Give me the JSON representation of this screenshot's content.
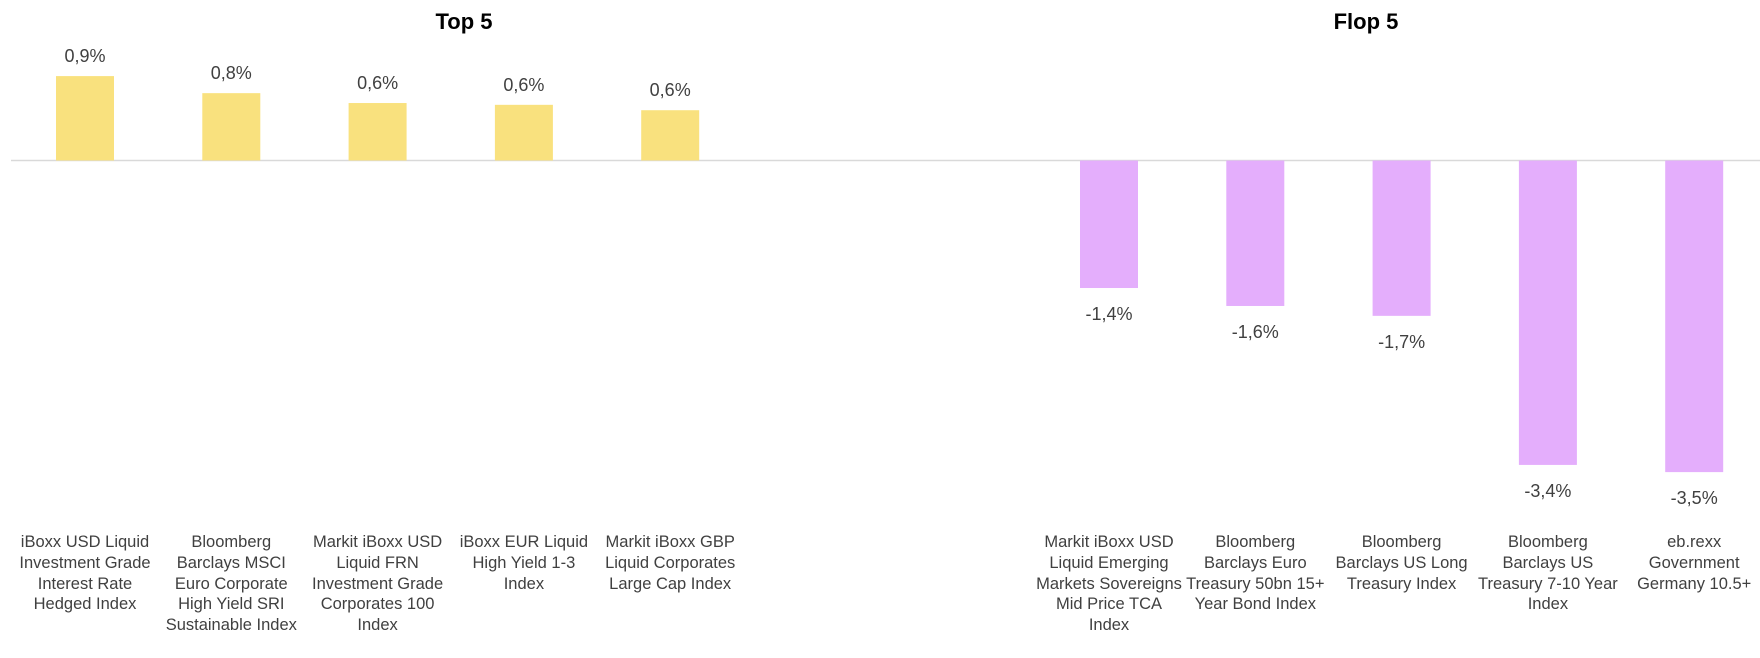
{
  "chart_data": [
    {
      "type": "bar",
      "title": "Top 5",
      "color": "#f9e17e",
      "categories": [
        "iBoxx USD Liquid Investment Grade Interest Rate Hedged Index",
        "Bloomberg Barclays MSCI Euro Corporate High Yield SRI Sustainable Index",
        "Markit iBoxx USD Liquid FRN Investment Grade Corporates 100 Index",
        "iBoxx EUR Liquid High Yield 1-3 Index",
        "Markit iBoxx GBP Liquid Corporates Large Cap Index"
      ],
      "values": [
        0.94,
        0.75,
        0.64,
        0.62,
        0.56
      ],
      "value_labels": [
        "0,9%",
        "0,8%",
        "0,6%",
        "0,6%",
        "0,6%"
      ]
    },
    {
      "type": "bar",
      "title": "Flop 5",
      "color": "#e4aefc",
      "categories": [
        "Markit iBoxx USD Liquid Emerging Markets Sovereigns Mid Price TCA Index",
        "Bloomberg Barclays Euro Treasury 50bn 15+ Year Bond Index",
        "Bloomberg Barclays US Long Treasury Index",
        "Bloomberg Barclays US Treasury 7-10 Year Index",
        "eb.rexx Government Germany 10.5+"
      ],
      "values": [
        -1.42,
        -1.62,
        -1.73,
        -3.39,
        -3.47
      ],
      "value_labels": [
        "-1,4%",
        "-1,6%",
        "-1,7%",
        "-3,4%",
        "-3,5%"
      ]
    }
  ]
}
